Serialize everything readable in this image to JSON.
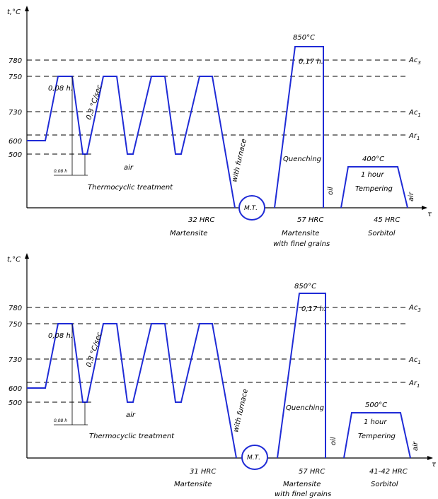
{
  "diagrams": [
    {
      "axis_y_label": "t,°С",
      "axis_x_label": "τ",
      "ticks": [
        "780",
        "750",
        "730",
        "600",
        "500"
      ],
      "lines": [
        "Ac3",
        "Ac1",
        "Ar1"
      ],
      "hold_label": "0,08 h.",
      "rate_label": "0,3 °С/sec",
      "small_hold": "0,08 h",
      "air": "air",
      "thermocyclic": "Thermocyclic treatment",
      "furnace": "with furnace",
      "mt": "М.Т.",
      "quench_temp": "850°С",
      "quench_time": "0,17 h.",
      "quenching": "Quenching",
      "oil": "oil",
      "temper_temp": "400°С",
      "temper_time": "1 hour",
      "tempering": "Tempering",
      "temper_air": "air",
      "hrc1": "32 HRC",
      "struct1": "Martensite",
      "hrc2": "57 HRC",
      "struct2a": "Martensite",
      "struct2b": "with finel grains",
      "hrc3": "45 HRC",
      "struct3": "Sorbitol"
    },
    {
      "axis_y_label": "t,°С",
      "axis_x_label": "τ",
      "ticks": [
        "780",
        "750",
        "730",
        "600",
        "500"
      ],
      "lines": [
        "Ac3",
        "Ac1",
        "Ar1"
      ],
      "hold_label": "0,08 h.",
      "rate_label": "0,3 °С/sec",
      "small_hold": "0,08 h",
      "air": "air",
      "thermocyclic": "Thermocyclic treatment",
      "furnace": "with furnace",
      "mt": "М.Т.",
      "quench_temp": "850°С",
      "quench_time": "0,17 h.",
      "quenching": "Quenching",
      "oil": "oil",
      "temper_temp": "500°С",
      "temper_time": "1 hour",
      "tempering": "Tempering",
      "temper_air": "air",
      "hrc1": "31 HRC",
      "struct1": "Martensite",
      "hrc2": "57 HRC",
      "struct2a": "Martensite",
      "struct2b": "with finel grains",
      "hrc3": "41-42 HRC",
      "struct3": "Sorbitol"
    }
  ]
}
